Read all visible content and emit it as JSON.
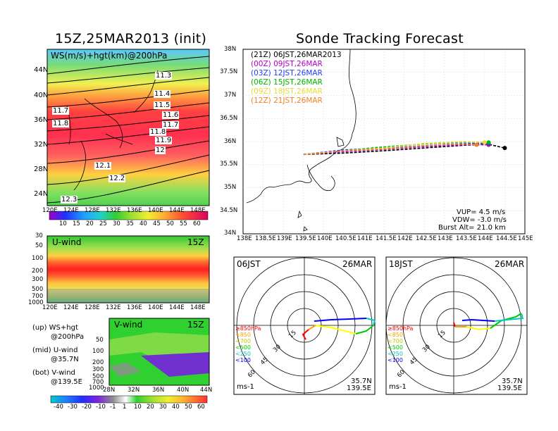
{
  "left_title": "15Z,25MAR2013 (init)",
  "right_title": "Sonde Tracking Forecast",
  "map_panel": {
    "label": "WS(m/s)+hgt(km)@200hPa",
    "lat_ticks": [
      "44N",
      "40N",
      "36N",
      "32N",
      "28N",
      "24N"
    ],
    "lon_ticks": [
      "120E",
      "124E",
      "128E",
      "132E",
      "136E",
      "140E",
      "144E",
      "148E"
    ],
    "contour_labels": [
      {
        "text": "11.3"
      },
      {
        "text": "11.4"
      },
      {
        "text": "11.5"
      },
      {
        "text": "11.6"
      },
      {
        "text": "11.7"
      },
      {
        "text": "11.8"
      },
      {
        "text": "11.9"
      },
      {
        "text": "12"
      },
      {
        "text": "12.1"
      },
      {
        "text": "12.2"
      },
      {
        "text": "12.3"
      },
      {
        "text": "11.7"
      },
      {
        "text": "11.8"
      }
    ],
    "colorbar_labels": [
      "10",
      "15",
      "20",
      "25",
      "30",
      "35",
      "40",
      "45",
      "50",
      "55",
      "60"
    ]
  },
  "u_panel": {
    "label": "U-wind",
    "time": "15Z",
    "p_ticks": [
      "30",
      "50",
      "100",
      "200",
      "300",
      "500",
      "700",
      "1000"
    ],
    "lon_ticks": [
      "120E",
      "124E",
      "128E",
      "132E",
      "136E",
      "140E",
      "144E",
      "148E"
    ]
  },
  "v_panel": {
    "label": "V-wind",
    "time": "15Z",
    "p_ticks": [
      "50",
      "100",
      "200",
      "300",
      "500",
      "700",
      "1000"
    ],
    "lat_ticks": [
      "28N",
      "32N",
      "36N",
      "40N",
      "44N"
    ],
    "colorbar_labels": [
      "-40",
      "-30",
      "-20",
      "-10",
      "-1",
      "1",
      "10",
      "20",
      "30",
      "40",
      "50",
      "60"
    ]
  },
  "side_notes": {
    "up_1": "(up) WS+hgt",
    "up_2": "@200hPa",
    "mid_1": "(mid) U-wind",
    "mid_2": "@35.7N",
    "bot_1": "(bot) V-wind",
    "bot_2": "@139.5E"
  },
  "track_panel": {
    "lat_ticks": [
      "38N",
      "37.5N",
      "37N",
      "36.5N",
      "36N",
      "35.5N",
      "35N",
      "34.5N",
      "34N"
    ],
    "lon_ticks": [
      "138E",
      "138.5E",
      "139E",
      "139.5E",
      "140E",
      "140.5E",
      "141E",
      "141.5E",
      "142E",
      "142.5E",
      "143E",
      "143.5E",
      "144E",
      "144.5E",
      "145E"
    ],
    "legend": [
      {
        "text": "(21Z) 06JST,26MAR2013",
        "color": "#000000"
      },
      {
        "text": "(00Z) 09JST,26MAR",
        "color": "#b400c8"
      },
      {
        "text": "(03Z) 12JST,26MAR",
        "color": "#1e3cff"
      },
      {
        "text": "(06Z) 15JST,26MAR",
        "color": "#00b400"
      },
      {
        "text": "(09Z) 18JST,26MAR",
        "color": "#e6dc32"
      },
      {
        "text": "(12Z) 21JST,26MAR",
        "color": "#f08228"
      }
    ],
    "vup": "VUP= 4.5 m/s",
    "vdw": "VDW= -3.0 m/s",
    "burst": "Burst Alt= 21.0 km"
  },
  "hodo_left": {
    "time": "06JST",
    "date": "26MAR",
    "rings": [
      "15",
      "30",
      "45",
      "60"
    ],
    "unit": "ms-1",
    "lat": "35.7N",
    "lon": "139.5E"
  },
  "hodo_right": {
    "time": "18JST",
    "date": "26MAR",
    "rings": [
      "15",
      "30",
      "45",
      "60"
    ],
    "unit": "ms-1",
    "lat": "35.7N",
    "lon": "139.5E"
  },
  "hodo_legend": [
    {
      "text": "≥850hPa",
      "color": "#ff0000"
    },
    {
      "text": "<850",
      "color": "#ffa000"
    },
    {
      "text": "<700",
      "color": "#ffff00"
    },
    {
      "text": "<500",
      "color": "#00c800"
    },
    {
      "text": "<250",
      "color": "#00c8c8"
    },
    {
      "text": "<100",
      "color": "#0000ff"
    }
  ],
  "chart_data": [
    {
      "type": "line",
      "title": "Sonde Tracking Forecast",
      "xlabel": "",
      "ylabel": "",
      "xlim": [
        138,
        145
      ],
      "ylim": [
        34,
        38
      ],
      "series": [
        {
          "name": "(21Z) 06JST,26MAR2013",
          "x": [
            139.5,
            140.5,
            141.5,
            142.5,
            143.5,
            144.1,
            144.5
          ],
          "y": [
            35.72,
            35.75,
            35.8,
            35.86,
            35.92,
            35.94,
            35.86
          ]
        },
        {
          "name": "(00Z) 09JST,26MAR",
          "x": [
            139.5,
            140.5,
            141.5,
            142.5,
            143.5,
            144.1
          ],
          "y": [
            35.72,
            35.78,
            35.83,
            35.89,
            35.93,
            35.93
          ]
        },
        {
          "name": "(03Z) 12JST,26MAR",
          "x": [
            139.5,
            140.5,
            141.5,
            142.5,
            143.5,
            144.1
          ],
          "y": [
            35.72,
            35.82,
            35.86,
            35.91,
            35.96,
            35.96
          ]
        },
        {
          "name": "(06Z) 15JST,26MAR",
          "x": [
            139.5,
            140.5,
            141.3,
            142.5,
            143.5,
            144.1
          ],
          "y": [
            35.72,
            35.8,
            35.87,
            35.95,
            35.99,
            35.98
          ]
        },
        {
          "name": "(09Z) 18JST,26MAR",
          "x": [
            139.5,
            140.5,
            141.5,
            142.5,
            143.5,
            144.0
          ],
          "y": [
            35.72,
            35.8,
            35.86,
            35.96,
            36.0,
            35.98
          ]
        },
        {
          "name": "(12Z) 21JST,26MAR",
          "x": [
            139.5,
            140.5,
            141.5,
            142.5,
            143.5,
            143.8
          ],
          "y": [
            35.72,
            35.8,
            35.84,
            35.91,
            35.95,
            35.93
          ]
        }
      ]
    }
  ]
}
